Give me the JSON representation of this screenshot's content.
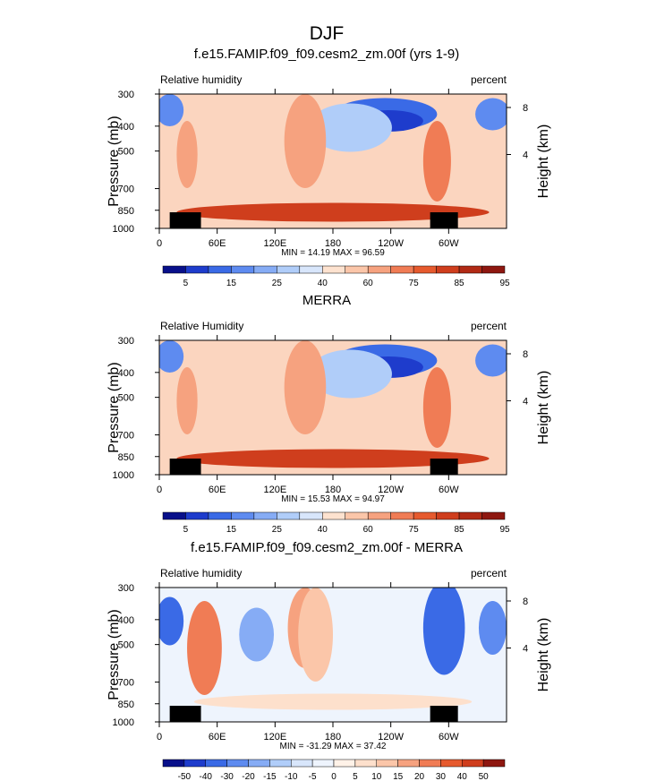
{
  "figure_title": "DJF",
  "panels": [
    {
      "title": "f.e15.FAMIP.f09_f09.cesm2_zm.00f (yrs 1-9)",
      "left_label": "Relative humidity",
      "right_label": "percent",
      "stats": "MIN =  14.19  MAX =  96.59"
    },
    {
      "title": "MERRA",
      "left_label": "Relative Humidity",
      "right_label": "percent",
      "stats": "MIN =  15.53  MAX =  94.97"
    },
    {
      "title": "f.e15.FAMIP.f09_f09.cesm2_zm.00f - MERRA",
      "left_label": "Relative humidity",
      "right_label": "percent",
      "stats": "MIN = -31.29  MAX =  37.42"
    }
  ],
  "chart_data": [
    {
      "type": "heatmap",
      "title": "f.e15.FAMIP.f09_f09.cesm2_zm.00f (yrs 1-9)",
      "xlabel": "",
      "ylabel": "Pressure (mb)",
      "y2label": "Height (km)",
      "x_ticks": [
        "0",
        "60E",
        "120E",
        "180",
        "120W",
        "60W"
      ],
      "y_ticks": [
        "300",
        "400",
        "500",
        "700",
        "850",
        "1000"
      ],
      "y2_ticks": [
        "8",
        "4"
      ],
      "units": "percent",
      "colorbar_labels": [
        "5",
        "15",
        "25",
        "40",
        "60",
        "75",
        "85",
        "95"
      ],
      "min": 14.19,
      "max": 96.59
    },
    {
      "type": "heatmap",
      "title": "MERRA",
      "xlabel": "",
      "ylabel": "Pressure (mb)",
      "y2label": "Height (km)",
      "x_ticks": [
        "0",
        "60E",
        "120E",
        "180",
        "120W",
        "60W"
      ],
      "y_ticks": [
        "300",
        "400",
        "500",
        "700",
        "850",
        "1000"
      ],
      "y2_ticks": [
        "8",
        "4"
      ],
      "units": "percent",
      "colorbar_labels": [
        "5",
        "15",
        "25",
        "40",
        "60",
        "75",
        "85",
        "95"
      ],
      "min": 15.53,
      "max": 94.97
    },
    {
      "type": "heatmap",
      "title": "f.e15.FAMIP.f09_f09.cesm2_zm.00f - MERRA",
      "xlabel": "",
      "ylabel": "Pressure (mb)",
      "y2label": "Height (km)",
      "x_ticks": [
        "0",
        "60E",
        "120E",
        "180",
        "120W",
        "60W"
      ],
      "y_ticks": [
        "300",
        "400",
        "500",
        "700",
        "850",
        "1000"
      ],
      "y2_ticks": [
        "8",
        "4"
      ],
      "units": "percent",
      "colorbar_labels": [
        "-50",
        "-40",
        "-30",
        "-20",
        "-15",
        "-10",
        "-5",
        "0",
        "5",
        "10",
        "15",
        "20",
        "30",
        "40",
        "50"
      ],
      "min": -31.29,
      "max": 37.42
    }
  ]
}
